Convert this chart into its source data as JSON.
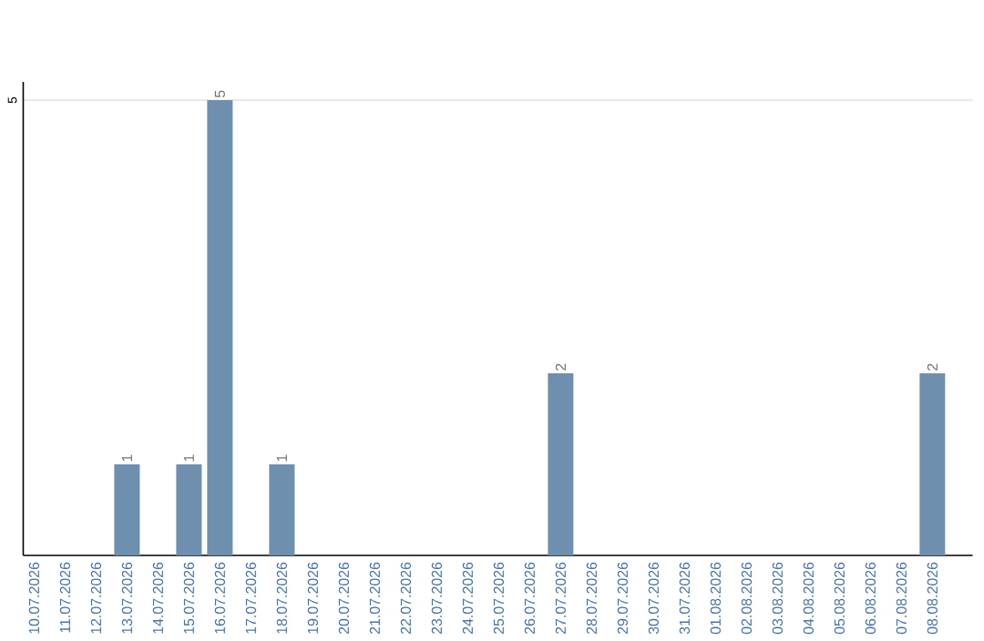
{
  "chart_data": {
    "type": "bar",
    "categories": [
      "10.07.2026",
      "11.07.2026",
      "12.07.2026",
      "13.07.2026",
      "14.07.2026",
      "15.07.2026",
      "16.07.2026",
      "17.07.2026",
      "18.07.2026",
      "19.07.2026",
      "20.07.2026",
      "21.07.2026",
      "22.07.2026",
      "23.07.2026",
      "24.07.2026",
      "25.07.2026",
      "26.07.2026",
      "27.07.2026",
      "28.07.2026",
      "29.07.2026",
      "30.07.2026",
      "31.07.2026",
      "01.08.2026",
      "02.08.2026",
      "03.08.2026",
      "04.08.2026",
      "05.08.2026",
      "06.08.2026",
      "07.08.2026",
      "08.08.2026"
    ],
    "values": [
      0,
      0,
      0,
      1,
      0,
      1,
      5,
      0,
      1,
      0,
      0,
      0,
      0,
      0,
      0,
      0,
      0,
      2,
      0,
      0,
      0,
      0,
      0,
      0,
      0,
      0,
      0,
      0,
      0,
      2
    ],
    "value_labels": [
      null,
      null,
      null,
      "1",
      null,
      "1",
      "5",
      null,
      "1",
      null,
      null,
      null,
      null,
      null,
      null,
      null,
      null,
      "2",
      null,
      null,
      null,
      null,
      null,
      null,
      null,
      null,
      null,
      null,
      null,
      "2"
    ],
    "color": "#6f8fae",
    "ylim": [
      0,
      5.2
    ],
    "yticks": [
      5
    ],
    "grid": "y"
  }
}
